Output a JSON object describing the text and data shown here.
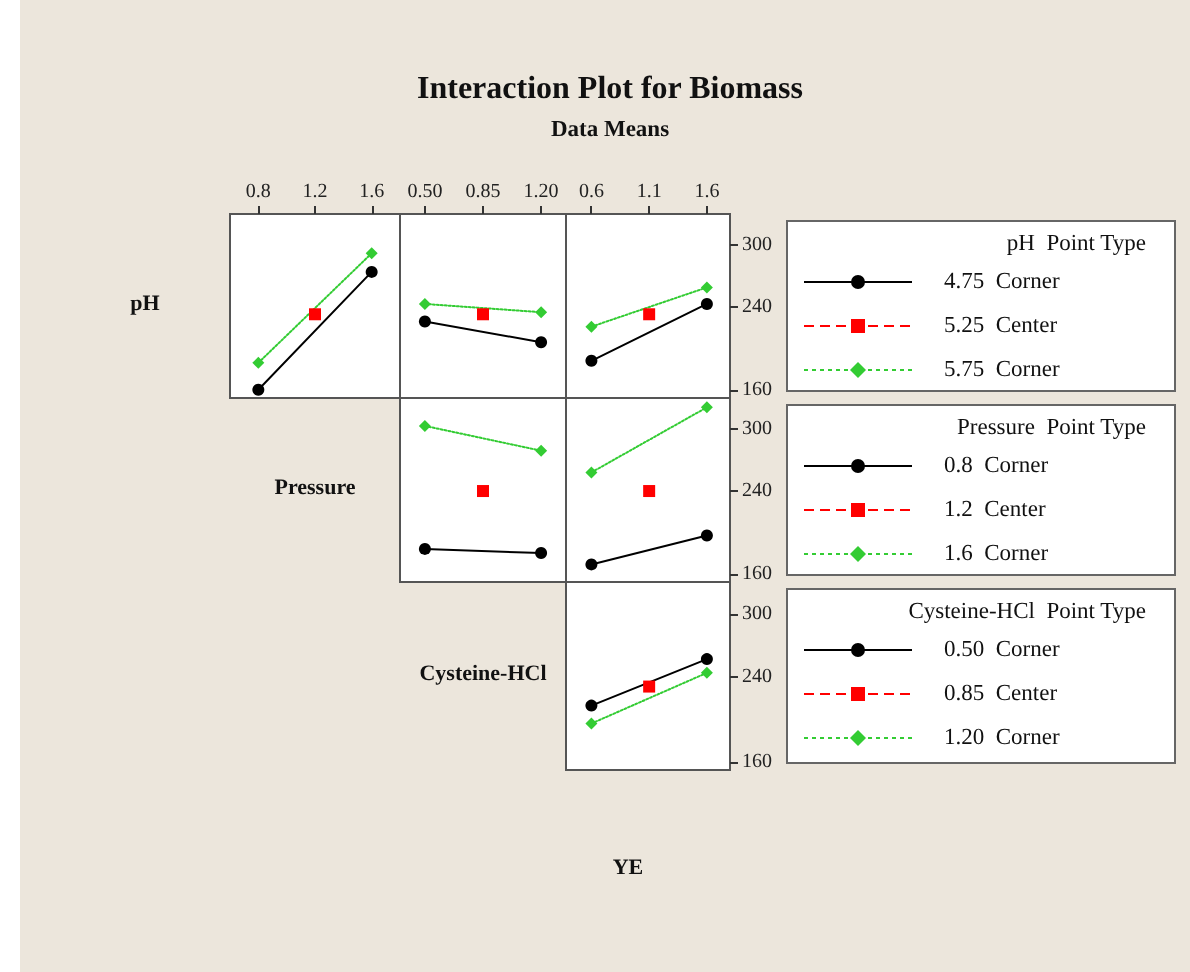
{
  "chart_data": [
    {
      "type": "line",
      "ylabel": "pH",
      "xlim": [
        0.6,
        1.8
      ],
      "xticks": [
        0.8,
        1.2,
        1.6
      ],
      "ylim": [
        152,
        330
      ],
      "yticks": [
        160,
        240,
        300
      ],
      "tick_labels": "x",
      "grid": false,
      "series": [
        {
          "color": "#000000",
          "marker": "circle",
          "line_style": "solid",
          "x": [
            0.8,
            1.6
          ],
          "values": [
            160,
            274
          ]
        },
        {
          "color": "#ff0000",
          "marker": "square",
          "line_style": "dashed",
          "x": [
            1.2
          ],
          "values": [
            233
          ]
        },
        {
          "color": "#33cc33",
          "marker": "diamond",
          "line_style": "dotted",
          "x": [
            0.8,
            1.6
          ],
          "values": [
            186,
            292
          ]
        }
      ]
    },
    {
      "type": "line",
      "xlim": [
        0.35,
        1.35
      ],
      "xticks": [
        {
          "value": 0.5,
          "label": "0.50"
        },
        {
          "value": 0.85,
          "label": "0.85"
        },
        {
          "value": 1.2,
          "label": "1.20"
        }
      ],
      "ylim": [
        152,
        330
      ],
      "yticks": [
        160,
        240,
        300
      ],
      "tick_labels": "x",
      "grid": false,
      "series": [
        {
          "color": "#000000",
          "marker": "circle",
          "line_style": "solid",
          "x": [
            0.5,
            1.2
          ],
          "values": [
            226,
            206
          ]
        },
        {
          "color": "#ff0000",
          "marker": "square",
          "line_style": "dashed",
          "x": [
            0.85
          ],
          "values": [
            233
          ]
        },
        {
          "color": "#33cc33",
          "marker": "diamond",
          "line_style": "dotted",
          "x": [
            0.5,
            1.2
          ],
          "values": [
            243,
            235
          ]
        }
      ]
    },
    {
      "type": "line",
      "title": "Interaction Plot for Biomass",
      "subtitle": "Data Means",
      "xlim": [
        0.38,
        1.8
      ],
      "xticks": [
        0.6,
        1.1,
        1.6
      ],
      "ylim": [
        152,
        330
      ],
      "yticks": [
        160,
        240,
        300
      ],
      "grid": false,
      "legend": "right",
      "legend_title": "pH  Point Type",
      "series": [
        {
          "name": "4.75  Corner",
          "color": "#000000",
          "marker": "circle",
          "line_style": "solid",
          "x": [
            0.6,
            1.6
          ],
          "values": [
            188,
            243
          ]
        },
        {
          "name": "5.25  Center",
          "color": "#ff0000",
          "marker": "square",
          "line_style": "dashed",
          "x": [
            1.1
          ],
          "values": [
            233
          ]
        },
        {
          "name": "5.75  Corner",
          "color": "#33cc33",
          "marker": "diamond",
          "line_style": "dotted",
          "x": [
            0.6,
            1.6
          ],
          "values": [
            221,
            259
          ]
        }
      ]
    },
    {
      "type": "line",
      "ylabel": "Pressure",
      "xlim": [
        0.35,
        1.35
      ],
      "xticks": [
        0.5,
        0.85,
        1.2
      ],
      "ylim": [
        152,
        330
      ],
      "yticks": [
        160,
        240,
        300
      ],
      "tick_labels": false,
      "grid": false,
      "series": [
        {
          "color": "#000000",
          "marker": "circle",
          "line_style": "solid",
          "x": [
            0.5,
            1.2
          ],
          "values": [
            184,
            180
          ]
        },
        {
          "color": "#ff0000",
          "marker": "square",
          "line_style": "dashed",
          "x": [
            0.85
          ],
          "values": [
            240
          ]
        },
        {
          "color": "#33cc33",
          "marker": "diamond",
          "line_style": "dotted",
          "x": [
            0.5,
            1.2
          ],
          "values": [
            303,
            279
          ]
        }
      ]
    },
    {
      "type": "line",
      "xlim": [
        0.38,
        1.8
      ],
      "xticks": [
        0.6,
        1.1,
        1.6
      ],
      "ylim": [
        152,
        330
      ],
      "yticks": [
        160,
        240,
        300
      ],
      "tick_labels": "y",
      "grid": false,
      "legend": "right",
      "legend_title": "Pressure  Point Type",
      "series": [
        {
          "name": "0.8  Corner",
          "color": "#000000",
          "marker": "circle",
          "line_style": "solid",
          "x": [
            0.6,
            1.6
          ],
          "values": [
            169,
            197
          ]
        },
        {
          "name": "1.2  Center",
          "color": "#ff0000",
          "marker": "square",
          "line_style": "dashed",
          "x": [
            1.1
          ],
          "values": [
            240
          ]
        },
        {
          "name": "1.6  Corner",
          "color": "#33cc33",
          "marker": "diamond",
          "line_style": "dotted",
          "x": [
            0.6,
            1.6
          ],
          "values": [
            258,
            321
          ]
        }
      ]
    },
    {
      "type": "line",
      "ylabel": "Cysteine-HCl",
      "xlabel": "YE",
      "xlim": [
        0.38,
        1.8
      ],
      "xticks": [
        0.6,
        1.1,
        1.6
      ],
      "ylim": [
        152,
        330
      ],
      "yticks": [
        160,
        240,
        300
      ],
      "tick_labels": "y",
      "grid": false,
      "legend": "right",
      "legend_title": "Cysteine-HCl  Point Type",
      "series": [
        {
          "name": "0.50  Corner",
          "color": "#000000",
          "marker": "circle",
          "line_style": "solid",
          "x": [
            0.6,
            1.6
          ],
          "values": [
            213,
            257
          ]
        },
        {
          "name": "0.85  Center",
          "color": "#ff0000",
          "marker": "square",
          "line_style": "dashed",
          "x": [
            1.1
          ],
          "values": [
            231
          ]
        },
        {
          "name": "1.20  Corner",
          "color": "#33cc33",
          "marker": "diamond",
          "line_style": "dotted",
          "x": [
            0.6,
            1.6
          ],
          "values": [
            196,
            244
          ]
        }
      ]
    }
  ]
}
